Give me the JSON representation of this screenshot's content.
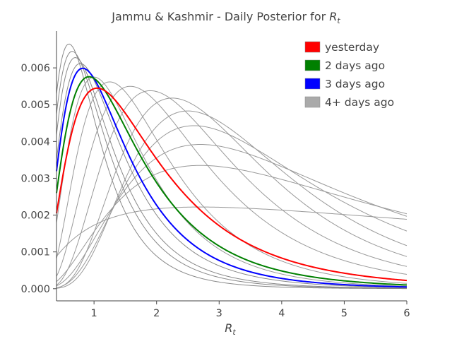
{
  "chart_data": {
    "type": "line",
    "title_text": "Jammu & Kashmir - Daily Posterior for ",
    "title_symbol": "R",
    "title_subscript": "t",
    "xlabel_symbol": "R",
    "xlabel_subscript": "t",
    "ylabel": "",
    "xlim": [
      0.4,
      6.0
    ],
    "ylim": [
      -0.00033,
      0.007
    ],
    "x_ticks": [
      1,
      2,
      3,
      4,
      5,
      6
    ],
    "x_tick_labels": [
      "1",
      "2",
      "3",
      "4",
      "5",
      "6"
    ],
    "y_ticks": [
      0.0,
      0.001,
      0.002,
      0.003,
      0.004,
      0.005,
      0.006
    ],
    "y_tick_labels": [
      "0.000",
      "0.001",
      "0.002",
      "0.003",
      "0.004",
      "0.005",
      "0.006"
    ],
    "grid": false,
    "legend_position": "top-right",
    "legend": [
      {
        "name": "yesterday",
        "color": "#ff0000"
      },
      {
        "name": "2 days ago",
        "color": "#008000"
      },
      {
        "name": "3 days ago",
        "color": "#0000ff"
      },
      {
        "name": "4+ days ago",
        "color": "#aaaaaa"
      }
    ],
    "series": [
      {
        "group": "4+ days ago",
        "color": "#999999",
        "peak_x": 2.7,
        "peak_y": 0.00222,
        "sigma": 1.4
      },
      {
        "group": "4+ days ago",
        "color": "#999999",
        "peak_x": 2.7,
        "peak_y": 0.00335,
        "sigma": 0.8
      },
      {
        "group": "4+ days ago",
        "color": "#999999",
        "peak_x": 2.7,
        "peak_y": 0.00392,
        "sigma": 0.68
      },
      {
        "group": "4+ days ago",
        "color": "#999999",
        "peak_x": 2.6,
        "peak_y": 0.00443,
        "sigma": 0.58
      },
      {
        "group": "4+ days ago",
        "color": "#999999",
        "peak_x": 2.5,
        "peak_y": 0.00483,
        "sigma": 0.52
      },
      {
        "group": "4+ days ago",
        "color": "#999999",
        "peak_x": 2.25,
        "peak_y": 0.00518,
        "sigma": 0.52
      },
      {
        "group": "4+ days ago",
        "color": "#999999",
        "peak_x": 1.9,
        "peak_y": 0.00538,
        "sigma": 0.55
      },
      {
        "group": "4+ days ago",
        "color": "#999999",
        "peak_x": 1.58,
        "peak_y": 0.0055,
        "sigma": 0.58
      },
      {
        "group": "4+ days ago",
        "color": "#999999",
        "peak_x": 1.25,
        "peak_y": 0.00562,
        "sigma": 0.58
      },
      {
        "group": "4+ days ago",
        "color": "#999999",
        "peak_x": 1.0,
        "peak_y": 0.00575,
        "sigma": 0.6
      },
      {
        "group": "4+ days ago",
        "color": "#888888",
        "peak_x": 0.6,
        "peak_y": 0.00665,
        "sigma": 0.6
      },
      {
        "group": "4+ days ago",
        "color": "#888888",
        "peak_x": 0.65,
        "peak_y": 0.00645,
        "sigma": 0.62
      },
      {
        "group": "4+ days ago",
        "color": "#888888",
        "peak_x": 0.7,
        "peak_y": 0.00628,
        "sigma": 0.62
      },
      {
        "group": "4+ days ago",
        "color": "#888888",
        "peak_x": 0.78,
        "peak_y": 0.00612,
        "sigma": 0.63
      },
      {
        "group": "3 days ago",
        "color": "#0000ff",
        "peak_x": 0.82,
        "peak_y": 0.00599,
        "sigma": 0.64
      },
      {
        "group": "2 days ago",
        "color": "#008000",
        "peak_x": 0.92,
        "peak_y": 0.00576,
        "sigma": 0.66
      },
      {
        "group": "yesterday",
        "color": "#ff0000",
        "peak_x": 1.05,
        "peak_y": 0.00545,
        "sigma": 0.69
      }
    ]
  }
}
